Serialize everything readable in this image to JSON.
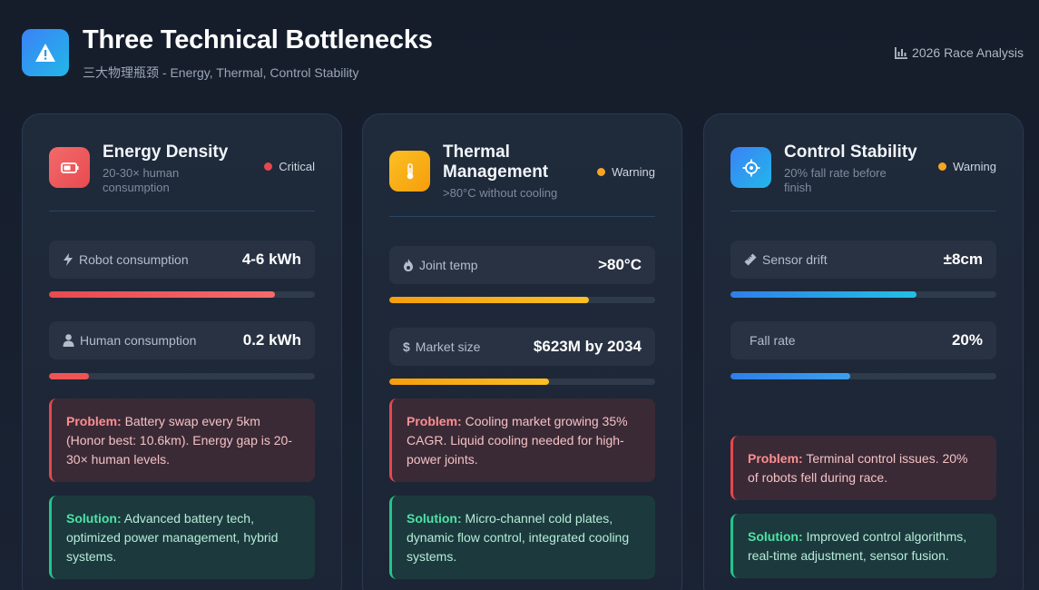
{
  "header": {
    "title": "Three Technical Bottlenecks",
    "subtitle": "三大物理瓶颈 - Energy, Thermal, Control Stability",
    "link_label": "2026 Race Analysis"
  },
  "colors": {
    "critical": "#e5484d",
    "warning": "#f5a623",
    "energy_bar": "#ef5454",
    "thermal_bar": "#f5b21d",
    "control_bar": "#2f8ef0"
  },
  "cards": [
    {
      "title": "Energy Density",
      "subtitle": "20-30× human consumption",
      "status": "Critical",
      "icon": "battery-icon",
      "metrics": [
        {
          "icon": "lightning-icon",
          "label": "Robot consumption",
          "value": "4-6 kWh",
          "level": 0.85
        },
        {
          "icon": "person-icon",
          "label": "Human consumption",
          "value": "0.2 kWh",
          "level": 0.15
        }
      ],
      "problem_label": "Problem:",
      "problem_text": " Battery swap every 5km (Honor best: 10.6km). Energy gap is 20-30× human levels.",
      "solution_label": "Solution:",
      "solution_text": " Advanced battery tech, optimized power management, hybrid systems."
    },
    {
      "title": "Thermal Management",
      "subtitle": ">80°C without cooling",
      "status": "Warning",
      "icon": "thermometer-icon",
      "metrics": [
        {
          "icon": "fire-icon",
          "label": "Joint temp",
          "value": ">80°C",
          "level": 0.75
        },
        {
          "icon": "dollar-icon",
          "label": "Market size",
          "value": "$623M by 2034",
          "level": 0.6
        }
      ],
      "problem_label": "Problem:",
      "problem_text": " Cooling market growing 35% CAGR. Liquid cooling needed for high-power joints.",
      "solution_label": "Solution:",
      "solution_text": " Micro-channel cold plates, dynamic flow control, integrated cooling systems."
    },
    {
      "title": "Control Stability",
      "subtitle": "20% fall rate before finish",
      "status": "Warning",
      "icon": "crosshair-icon",
      "metrics": [
        {
          "icon": "ruler-icon",
          "label": "Sensor drift",
          "value": "±8cm",
          "level": 0.7
        },
        {
          "icon": "",
          "label": "Fall rate",
          "value": "20%",
          "level": 0.45
        }
      ],
      "problem_label": "Problem:",
      "problem_text": " Terminal control issues. 20% of robots fell during race.",
      "solution_label": "Solution:",
      "solution_text": " Improved control algorithms, real-time adjustment, sensor fusion."
    }
  ]
}
